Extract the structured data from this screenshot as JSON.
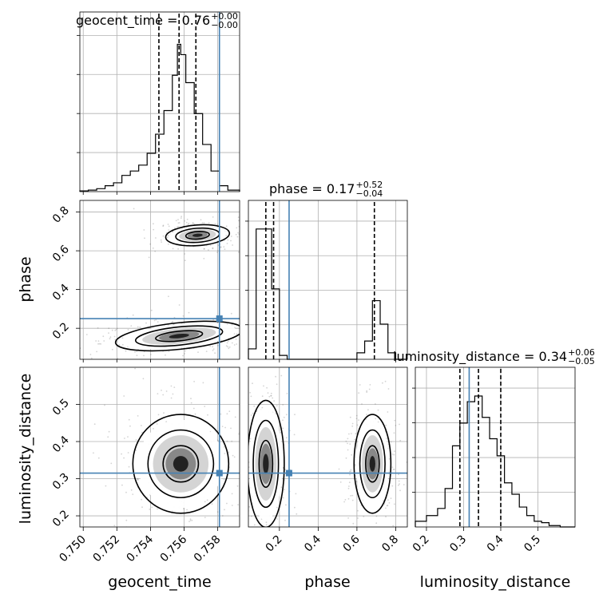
{
  "chart_data": {
    "type": "corner",
    "parameters": [
      "geocent_time",
      "phase",
      "luminosity_distance"
    ],
    "truth": {
      "geocent_time": 0.7581,
      "phase": 0.25,
      "luminosity_distance": 0.315
    },
    "truth_color": "#4682b4",
    "grid": true,
    "titles": [
      {
        "param": "geocent_time",
        "text": "geocent_time = 0.76",
        "sup": "+0.00",
        "sub": "−0.00"
      },
      {
        "param": "phase",
        "text": "phase = 0.17",
        "sup": "+0.52",
        "sub": "−0.04"
      },
      {
        "param": "luminosity_distance",
        "text": "luminosity_distance = 0.34",
        "sup": "+0.06",
        "sub": "−0.05"
      }
    ],
    "axis_labels": {
      "geocent_time": "geocent_time",
      "phase": "phase",
      "luminosity_distance": "luminosity_distance"
    },
    "ranges": {
      "geocent_time": [
        0.7498,
        0.7593
      ],
      "phase": [
        0.04,
        0.86
      ],
      "luminosity_distance": [
        0.17,
        0.6
      ]
    },
    "ticks": {
      "geocent_time": [
        "0.750",
        "0.752",
        "0.754",
        "0.756",
        "0.758"
      ],
      "phase": [
        "0.2",
        "0.4",
        "0.6",
        "0.8"
      ],
      "luminosity_distance": [
        "0.2",
        "0.3",
        "0.4",
        "0.5"
      ]
    },
    "marginals": [
      {
        "param": "geocent_time",
        "quantiles": [
          0.7545,
          0.7557,
          0.7567
        ],
        "bin_edges": [
          0.7498,
          0.7503,
          0.7508,
          0.7513,
          0.7518,
          0.7523,
          0.7528,
          0.7533,
          0.7538,
          0.7543,
          0.7548,
          0.7553,
          0.7556,
          0.7558,
          0.7561,
          0.7566,
          0.7571,
          0.7576,
          0.7581,
          0.7586,
          0.7593
        ],
        "counts": [
          0.5,
          1,
          2,
          4,
          6,
          11,
          14,
          18,
          26,
          39,
          55,
          79,
          100,
          93,
          74,
          53,
          32,
          14,
          4,
          1
        ]
      },
      {
        "param": "phase",
        "quantiles": [
          0.13,
          0.17,
          0.69
        ],
        "bin_edges": [
          0.04,
          0.08,
          0.12,
          0.16,
          0.2,
          0.24,
          0.28,
          0.6,
          0.64,
          0.68,
          0.72,
          0.76,
          0.8,
          0.86
        ],
        "counts": [
          8,
          100,
          100,
          54,
          3,
          0,
          0,
          5,
          14,
          45,
          27,
          5,
          0
        ]
      },
      {
        "param": "luminosity_distance",
        "quantiles": [
          0.29,
          0.34,
          0.4
        ],
        "bin_edges": [
          0.17,
          0.2,
          0.23,
          0.25,
          0.27,
          0.29,
          0.31,
          0.33,
          0.35,
          0.37,
          0.39,
          0.41,
          0.43,
          0.45,
          0.47,
          0.49,
          0.51,
          0.53,
          0.56,
          0.6
        ],
        "counts": [
          4,
          8,
          13,
          27,
          57,
          73,
          88,
          92,
          77,
          62,
          50,
          31,
          23,
          14,
          8,
          4,
          3,
          1,
          0
        ]
      }
    ],
    "joint_2d": [
      {
        "x": "geocent_time",
        "y": "phase",
        "modes": [
          {
            "cx": 0.7568,
            "cy": 0.68,
            "rx": 0.001,
            "ry": 0.028,
            "rot": -4
          },
          {
            "cx": 0.7557,
            "cy": 0.16,
            "rx": 0.002,
            "ry": 0.036,
            "rot": -6
          }
        ]
      },
      {
        "x": "geocent_time",
        "y": "luminosity_distance",
        "modes": [
          {
            "cx": 0.7558,
            "cy": 0.34,
            "rx": 0.0015,
            "ry": 0.07,
            "rot": 0
          }
        ]
      },
      {
        "x": "phase",
        "y": "luminosity_distance",
        "modes": [
          {
            "cx": 0.13,
            "cy": 0.34,
            "rx": 0.05,
            "ry": 0.09,
            "rot": 0
          },
          {
            "cx": 0.68,
            "cy": 0.34,
            "rx": 0.05,
            "ry": 0.07,
            "rot": 0
          }
        ]
      }
    ]
  }
}
